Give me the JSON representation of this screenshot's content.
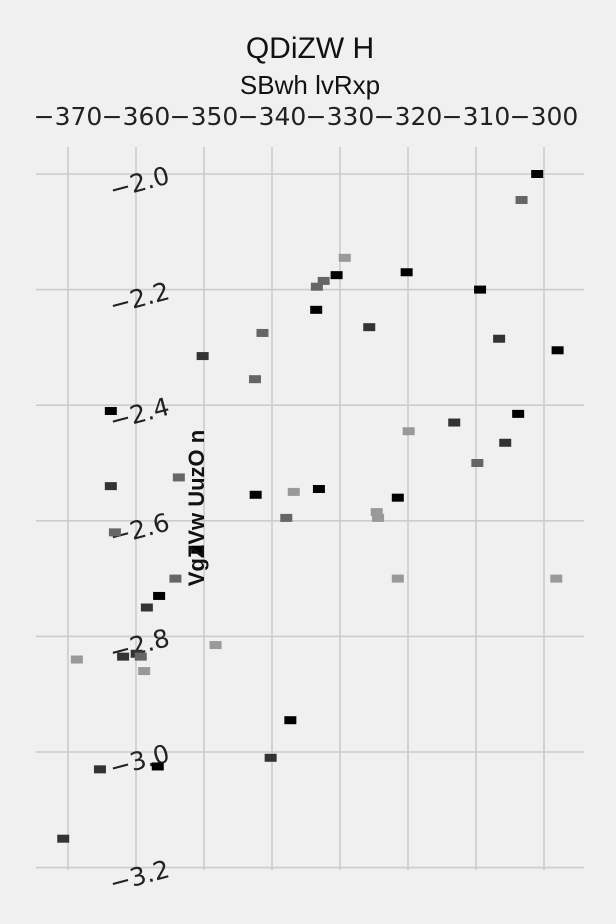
{
  "chart_data": {
    "type": "scatter",
    "title": "QDiZW H",
    "subtitle": "SBwh lvRxp",
    "xlabel": "",
    "ylabel": "VgZVw UuzO n",
    "x_axis_position": "top",
    "xlim": [
      -374.5,
      -294.0
    ],
    "ylim": [
      -3.2,
      -2.0
    ],
    "x_ticks": [
      "−370",
      "−360",
      "−350",
      "−340",
      "−330",
      "−320",
      "−310",
      "−300"
    ],
    "x_tick_values": [
      -370,
      -360,
      -350,
      -340,
      -330,
      -320,
      -310,
      -300
    ],
    "y_ticks": [
      "−2.0",
      "−2.2",
      "−2.4",
      "−2.6",
      "−2.8",
      "−3.0",
      "−3.2"
    ],
    "y_tick_values": [
      -2.0,
      -2.2,
      -2.4,
      -2.6,
      -2.8,
      -3.0,
      -3.2
    ],
    "grid": true,
    "series": [
      {
        "color": "#000000",
        "points": [
          [
            -301.0,
            -2.0
          ],
          [
            -320.2,
            -2.17
          ],
          [
            -309.4,
            -2.2
          ],
          [
            -330.5,
            -2.175
          ],
          [
            -333.5,
            -2.235
          ],
          [
            -298.0,
            -2.305
          ],
          [
            -303.8,
            -2.415
          ],
          [
            -363.7,
            -2.41
          ],
          [
            -333.1,
            -2.545
          ],
          [
            -342.4,
            -2.555
          ],
          [
            -321.5,
            -2.56
          ],
          [
            -356.6,
            -2.73
          ],
          [
            -351.0,
            -2.65
          ],
          [
            -337.3,
            -2.945
          ],
          [
            -356.8,
            -3.025
          ]
        ]
      },
      {
        "color": "#333333",
        "points": [
          [
            -325.7,
            -2.265
          ],
          [
            -350.2,
            -2.315
          ],
          [
            -306.6,
            -2.285
          ],
          [
            -313.2,
            -2.43
          ],
          [
            -305.7,
            -2.465
          ],
          [
            -363.7,
            -2.54
          ],
          [
            -361.9,
            -2.835
          ],
          [
            -358.4,
            -2.75
          ],
          [
            -365.3,
            -3.03
          ],
          [
            -340.2,
            -3.01
          ],
          [
            -370.7,
            -3.15
          ],
          [
            -359.9,
            -2.83
          ]
        ]
      },
      {
        "color": "#666666",
        "points": [
          [
            -303.3,
            -2.045
          ],
          [
            -332.4,
            -2.185
          ],
          [
            -333.4,
            -2.195
          ],
          [
            -341.4,
            -2.275
          ],
          [
            -342.5,
            -2.355
          ],
          [
            -309.8,
            -2.5
          ],
          [
            -337.9,
            -2.595
          ],
          [
            -363.1,
            -2.62
          ],
          [
            -353.7,
            -2.525
          ],
          [
            -354.2,
            -2.7
          ],
          [
            -359.3,
            -2.835
          ]
        ]
      },
      {
        "color": "#999999",
        "points": [
          [
            -329.3,
            -2.145
          ],
          [
            -319.9,
            -2.445
          ],
          [
            -336.8,
            -2.55
          ],
          [
            -324.6,
            -2.585
          ],
          [
            -324.4,
            -2.595
          ],
          [
            -321.5,
            -2.7
          ],
          [
            -298.2,
            -2.7
          ],
          [
            -348.3,
            -2.815
          ],
          [
            -368.7,
            -2.84
          ],
          [
            -358.8,
            -2.86
          ]
        ]
      }
    ]
  }
}
